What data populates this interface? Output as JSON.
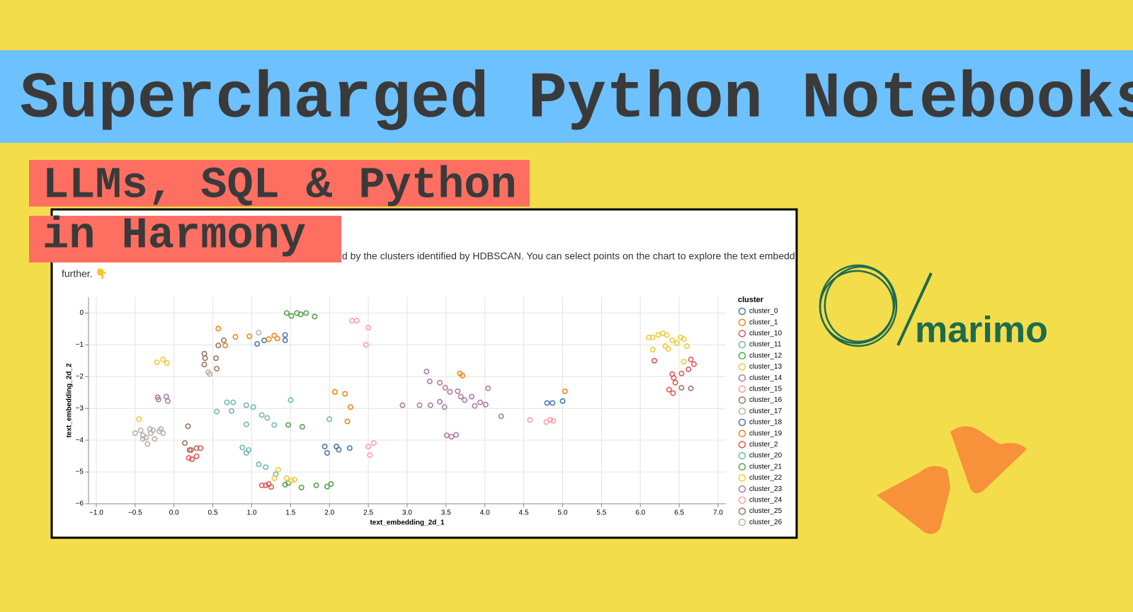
{
  "title": "Supercharged Python Notebooks",
  "subtitle_line1": "LLMs, SQL & Python",
  "subtitle_line2": "in Harmony",
  "description_line1": "d by the clusters identified by HDBSCAN. You can select points on the chart to explore the text embeddings",
  "description_line2": "further. 👇",
  "logo_text": "marimo",
  "chart_data": {
    "type": "scatter",
    "xlabel": "text_embedding_2d_1",
    "ylabel": "text_embedding_2d_2",
    "legend_title": "cluster",
    "grid": true,
    "legend": "right",
    "xlim": [
      -1.1,
      7.1
    ],
    "ylim": [
      -6,
      0.5
    ],
    "xticks": [
      {
        "value": -1,
        "label": "−1.0"
      },
      {
        "value": -0.5,
        "label": "−0.5"
      },
      {
        "value": 0,
        "label": "0.0"
      },
      0.5,
      {
        "value": 1,
        "label": "1.0"
      },
      1.5,
      {
        "value": 2,
        "label": "2.0"
      },
      2.5,
      {
        "value": 3,
        "label": "3.0"
      },
      3.5,
      {
        "value": 4,
        "label": "4.0"
      },
      4.5,
      {
        "value": 5,
        "label": "5.0"
      },
      5.5,
      {
        "value": 6,
        "label": "6.0"
      },
      6.5,
      {
        "value": 7,
        "label": "7.0"
      }
    ],
    "yticks": [
      0,
      {
        "value": -1,
        "label": "−1"
      },
      {
        "value": -2,
        "label": "−2"
      },
      {
        "value": -3,
        "label": "−3"
      },
      {
        "value": -4,
        "label": "−4"
      },
      {
        "value": -5,
        "label": "−5"
      },
      {
        "value": -6,
        "label": "−6"
      }
    ],
    "series": [
      {
        "name": "cluster_0",
        "color": "#4c78a8",
        "x": [
          1.07,
          1.16,
          1.43,
          1.43
        ],
        "y": [
          -0.97,
          -0.86,
          -0.69,
          -0.86
        ]
      },
      {
        "name": "cluster_1",
        "color": "#f58518",
        "x": [
          0.57,
          0.66,
          0.79,
          0.97,
          1.22,
          1.29,
          1.33
        ],
        "y": [
          -0.49,
          -1.02,
          -0.75,
          -0.73,
          -0.82,
          -0.71,
          -0.8
        ]
      },
      {
        "name": "cluster_10",
        "color": "#e45756",
        "x": [
          6.18,
          6.41,
          6.43,
          6.45,
          6.53,
          6.62,
          6.65,
          6.69,
          6.37,
          6.42
        ],
        "y": [
          -1.5,
          -1.92,
          -2.04,
          -2.19,
          -1.9,
          -1.77,
          -1.46,
          -1.61,
          -2.41,
          -2.52
        ]
      },
      {
        "name": "cluster_11",
        "color": "#72b7b2",
        "x": [
          0.68,
          0.76,
          0.74,
          0.93,
          1.02,
          1.13,
          1.2,
          1.29,
          1.5,
          0.55
        ],
        "y": [
          -2.81,
          -2.81,
          -3.08,
          -2.9,
          -2.96,
          -3.21,
          -3.3,
          -3.52,
          -2.74,
          -3.1
        ]
      },
      {
        "name": "cluster_12",
        "color": "#54a24b",
        "x": [
          1.45,
          1.51,
          1.58,
          1.63,
          1.7,
          1.81
        ],
        "y": [
          0,
          -0.09,
          0,
          -0.04,
          0,
          -0.11
        ]
      },
      {
        "name": "cluster_13",
        "color": "#eeca3b",
        "x": [
          6.11,
          6.16,
          6.23,
          6.29,
          6.34,
          6.32,
          6.41,
          6.52,
          6.56,
          6.6,
          6.36,
          6.16,
          6.47,
          6.56
        ],
        "y": [
          -0.77,
          -0.77,
          -0.69,
          -0.64,
          -0.69,
          -1.04,
          -0.86,
          -0.77,
          -0.82,
          -1.04,
          -1.13,
          -1.15,
          -0.95,
          -1.53
        ]
      },
      {
        "name": "cluster_14",
        "color": "#b279a2",
        "x": [
          3.25,
          3.29,
          3.42,
          3.49,
          3.55,
          3.16,
          3.3,
          3.42,
          3.48,
          3.65,
          3.69,
          3.74,
          3.83,
          3.87,
          3.94,
          4.01,
          4.04,
          4.21,
          2.94
        ],
        "y": [
          -1.84,
          -2.15,
          -2.19,
          -2.35,
          -2.48,
          -2.9,
          -2.9,
          -2.79,
          -2.96,
          -2.46,
          -2.63,
          -2.74,
          -2.63,
          -2.92,
          -2.81,
          -2.88,
          -2.37,
          -3.25,
          -2.9
        ]
      },
      {
        "name": "cluster_15",
        "color": "#ff9da6",
        "x": [
          2.29,
          2.35,
          2.5,
          2.47,
          2.5,
          2.52,
          2.57
        ],
        "y": [
          -0.24,
          -0.24,
          -0.46,
          -1.0,
          -4.2,
          -4.47,
          -4.09
        ]
      },
      {
        "name": "cluster_16",
        "color": "#9d755d",
        "x": [
          0.39,
          0.4,
          0.39,
          0.54,
          0.57,
          0.64,
          0.55
        ],
        "y": [
          -1.28,
          -1.42,
          -1.62,
          -1.42,
          -1.02,
          -0.86,
          -1.75
        ]
      },
      {
        "name": "cluster_17",
        "color": "#bab0ac",
        "x": [
          -0.5,
          -0.43,
          -0.4,
          -0.36,
          -0.31,
          -0.3,
          -0.27,
          -0.25,
          -0.19,
          -0.14,
          -0.17,
          -0.34,
          -0.4
        ],
        "y": [
          -3.78,
          -3.69,
          -3.85,
          -3.92,
          -3.65,
          -3.78,
          -3.69,
          -3.96,
          -3.72,
          -3.78,
          -3.65,
          -4.12,
          -3.96
        ]
      },
      {
        "name": "cluster_18",
        "color": "#4c78a8",
        "x": [
          1.94,
          1.97,
          2.09,
          2.12,
          2.26,
          4.8,
          4.87,
          5.0
        ],
        "y": [
          -4.2,
          -4.4,
          -4.2,
          -4.3,
          -4.25,
          -2.83,
          -2.83,
          -2.77
        ]
      },
      {
        "name": "cluster_19",
        "color": "#f58518",
        "x": [
          2.07,
          2.2,
          2.27,
          2.23,
          3.68,
          3.71,
          5.03
        ],
        "y": [
          -2.48,
          -2.54,
          -2.96,
          -3.41,
          -1.9,
          -1.97,
          -2.46
        ]
      },
      {
        "name": "cluster_2",
        "color": "#e45756",
        "x": [
          0.19,
          0.23,
          0.29,
          0.34,
          0.22,
          1.13,
          1.18,
          1.25,
          1.22
        ],
        "y": [
          -4.56,
          -4.6,
          -4.51,
          -4.25,
          -4.31,
          -5.42,
          -5.42,
          -5.47,
          -5.38
        ]
      },
      {
        "name": "cluster_20",
        "color": "#72b7b2",
        "x": [
          0.88,
          0.93,
          0.96,
          1.09,
          1.18,
          1.31,
          2.0,
          0.93
        ],
        "y": [
          -4.23,
          -4.4,
          -4.31,
          -4.76,
          -4.85,
          -5.07,
          -3.34,
          -3.5
        ]
      },
      {
        "name": "cluster_21",
        "color": "#54a24b",
        "x": [
          1.43,
          1.47,
          1.64,
          1.83,
          1.97,
          2.02,
          1.47,
          1.65
        ],
        "y": [
          -5.4,
          -5.35,
          -5.49,
          -5.42,
          -5.46,
          -5.38,
          -3.52,
          -3.58
        ]
      },
      {
        "name": "cluster_22",
        "color": "#eeca3b",
        "x": [
          -0.22,
          -0.14,
          -0.09,
          -0.45,
          1.34,
          1.29,
          1.45,
          1.51,
          1.55
        ],
        "y": [
          -1.55,
          -1.46,
          -1.57,
          -3.34,
          -4.93,
          -5.2,
          -5.2,
          -5.27,
          -5.24
        ]
      },
      {
        "name": "cluster_23",
        "color": "#b279a2",
        "x": [
          -0.21,
          -0.1,
          -0.08,
          -0.2,
          3.51,
          3.57,
          3.63
        ],
        "y": [
          -2.65,
          -2.63,
          -2.77,
          -2.72,
          -3.85,
          -3.89,
          -3.83
        ]
      },
      {
        "name": "cluster_24",
        "color": "#ff9da6",
        "x": [
          4.58,
          4.79,
          4.84,
          4.88
        ],
        "y": [
          -3.36,
          -3.43,
          -3.36,
          -3.39
        ]
      },
      {
        "name": "cluster_25",
        "color": "#9d755d",
        "x": [
          0.14,
          0.2,
          0.29,
          6.53,
          6.65,
          0.18
        ],
        "y": [
          -4.09,
          -4.31,
          -4.25,
          -2.35,
          -2.37,
          -3.56
        ]
      },
      {
        "name": "cluster_26",
        "color": "#bab0ac",
        "x": [
          1.09,
          0.44,
          0.46
        ],
        "y": [
          -0.62,
          -1.86,
          -1.92
        ]
      }
    ]
  }
}
